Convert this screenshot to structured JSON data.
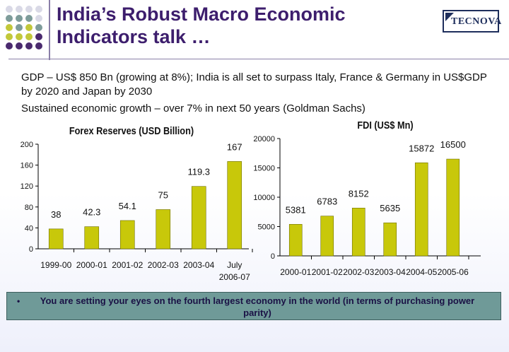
{
  "slide": {
    "title_line1": "India’s Robust Macro Economic",
    "title_line2": "Indicators talk …",
    "logo_text": "TECNOVA",
    "text1": "GDP – US$ 850 Bn (growing at 8%); India is all set to surpass Italy, France & Germany in US$GDP by 2020 and Japan by 2030",
    "text2": "Sustained economic growth – over 7% in next 50 years (Goldman Sachs)",
    "banner_bullet": "•",
    "banner_text": "You are setting your eyes on the fourth largest economy in the world (in terms of purchasing power parity)"
  },
  "colors": {
    "title": "#3d1e6d",
    "bar": "#c8c80a",
    "banner": "#6f9a98",
    "dots": [
      "#d9d9e6",
      "#7e9c9a",
      "#c2c83a",
      "#4a2a6e"
    ]
  },
  "chart_data": [
    {
      "type": "bar",
      "title": "Forex Reserves (USD Billion)",
      "categories": [
        "1999-00",
        "2000-01",
        "2001-02",
        "2002-03",
        "2003-04",
        "July 2006-07"
      ],
      "values": [
        38,
        42.3,
        54.1,
        75,
        119.3,
        167
      ],
      "labels": [
        "38",
        "42.3",
        "54.1",
        "75",
        "119.3",
        "167"
      ],
      "ylim": [
        0,
        200
      ],
      "yticks": [
        "0",
        "40",
        "80",
        "120",
        "160",
        "200"
      ],
      "grid": false
    },
    {
      "type": "bar",
      "title": "FDI (US$ Mn)",
      "categories": [
        "2000-01",
        "2001-02",
        "2002-03",
        "2003-04",
        "2004-05",
        "2005-06"
      ],
      "values": [
        5381,
        6783,
        8152,
        5635,
        15872,
        16500
      ],
      "labels": [
        "5381",
        "6783",
        "8152",
        "5635",
        "15872",
        "16500"
      ],
      "ylim": [
        0,
        20000
      ],
      "yticks": [
        "0",
        "5000",
        "10000",
        "15000",
        "20000"
      ],
      "grid": false
    }
  ]
}
